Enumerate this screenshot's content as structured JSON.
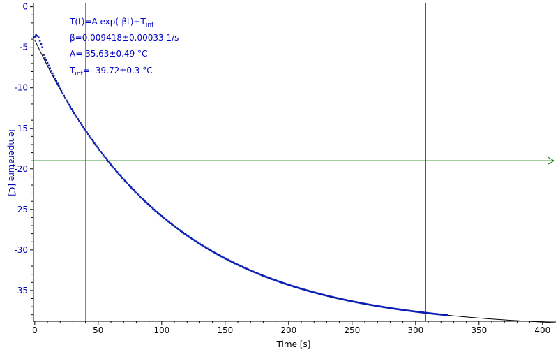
{
  "colors": {
    "background": "#ffffff",
    "axis": "#000000",
    "y_axis_text": "#0000b4",
    "x_axis_text": "#000000",
    "data": "#0a1eb4",
    "fit": "#000000",
    "green_cursor": "#00c800",
    "red_cursor": "#c80000",
    "h_cursor": "#007800",
    "annotation": "#0000c8"
  },
  "annotation": {
    "line1_main": "T(t)=A exp(-βt)+T",
    "line1_sub": "inf",
    "line2": "β=0.009418±0.00033 1/s",
    "line3": "A= 35.63±0.49 °C",
    "line4_main": "T",
    "line4_sub": "inf",
    "line4_rest": "= -39.72±0.3 °C"
  },
  "chart_data": {
    "type": "scatter",
    "xlabel": "Time [s]",
    "ylabel": "Temperature [C]",
    "xlim": [
      -1,
      410
    ],
    "ylim": [
      -38.8,
      0.4
    ],
    "x_ticks": [
      0,
      50,
      100,
      150,
      200,
      250,
      300,
      350,
      400
    ],
    "y_ticks": [
      0,
      -5,
      -10,
      -15,
      -20,
      -25,
      -30,
      -35
    ],
    "series": [
      {
        "kind": "measured",
        "x_start": 0,
        "x_end": 325,
        "x_step": 1,
        "early_points": [
          [
            0,
            -3.7
          ],
          [
            1,
            -3.5
          ],
          [
            2,
            -3.6
          ],
          [
            3,
            -3.8
          ],
          [
            4,
            -4.2
          ],
          [
            5,
            -4.6
          ],
          [
            6,
            -5.0
          ]
        ]
      },
      {
        "kind": "fit",
        "model": "T(t)=A exp(-βt)+T_inf",
        "A": 35.63,
        "beta": 0.009418,
        "T_inf": -39.72,
        "x_start": 0,
        "x_end": 410
      }
    ],
    "cursors": {
      "vertical_green_x": 40,
      "vertical_red_x": 308,
      "horizontal_y": -19
    },
    "grid": false
  }
}
